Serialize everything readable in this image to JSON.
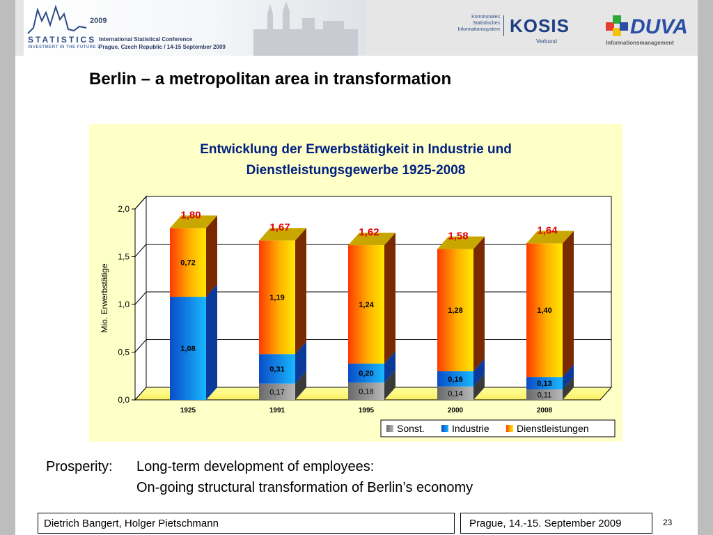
{
  "header": {
    "conference_logo": {
      "year": "2009",
      "wordmark": "STATISTICS",
      "tagline": "INVESTMENT IN THE FUTURE 2"
    },
    "conference_title": "International Statistical Conference",
    "conference_subtitle": "Prague, Czech Republic / 14-15 September 2009",
    "kosis": {
      "line1": "Kommunales",
      "line2": "Statistisches",
      "line3": "Informationssystem",
      "name": "KOSIS",
      "verbund": "Verbund"
    },
    "duva": {
      "name": "DUVA",
      "sub": "Informationsmanagement"
    }
  },
  "slide_title": "Berlin – a metropolitan area in transformation",
  "chart_data": {
    "type": "bar",
    "stacked": true,
    "title_line1": "Entwicklung der Erwerbstätigkeit in Industrie und",
    "title_line2": "Dienstleistungsgewerbe 1925-2008",
    "ylabel": "Mio. Erwerbstätige",
    "ylim": [
      0,
      2.0
    ],
    "y_ticks": [
      "0,0",
      "0,5",
      "1,0",
      "1,5",
      "2,0"
    ],
    "categories": [
      "1925",
      "1991",
      "1995",
      "2000",
      "2008"
    ],
    "series": [
      {
        "name": "Sonst.",
        "values": [
          0,
          0.17,
          0.18,
          0.14,
          0.11
        ],
        "labels": [
          "",
          "0,17",
          "0,18",
          "0,14",
          "0,11"
        ],
        "color": "#7a7a7a"
      },
      {
        "name": "Industrie",
        "values": [
          1.08,
          0.31,
          0.2,
          0.16,
          0.13
        ],
        "labels": [
          "1,08",
          "0,31",
          "0,20",
          "0,16",
          "0,13"
        ],
        "color": "#1a7ee6"
      },
      {
        "name": "Dienstleistungen",
        "values": [
          0.72,
          1.19,
          1.24,
          1.28,
          1.4
        ],
        "labels": [
          "0,72",
          "1,19",
          "1,24",
          "1,28",
          "1,40"
        ],
        "color": "#ff8800"
      }
    ],
    "totals": [
      "1,80",
      "1,67",
      "1,62",
      "1,58",
      "1,64"
    ],
    "totals_values": [
      1.8,
      1.67,
      1.62,
      1.58,
      1.64
    ],
    "legend_position": "bottom-right",
    "grid": true
  },
  "body": {
    "line1_prefix": "Prosperity:",
    "line1": "Long-term development of employees:",
    "line2": "On-going structural transformation of Berlin’s economy"
  },
  "footer": {
    "authors": "Dietrich Bangert, Holger Pietschmann",
    "event": "Prague, 14.-15. September 2009",
    "page_number": "23"
  }
}
